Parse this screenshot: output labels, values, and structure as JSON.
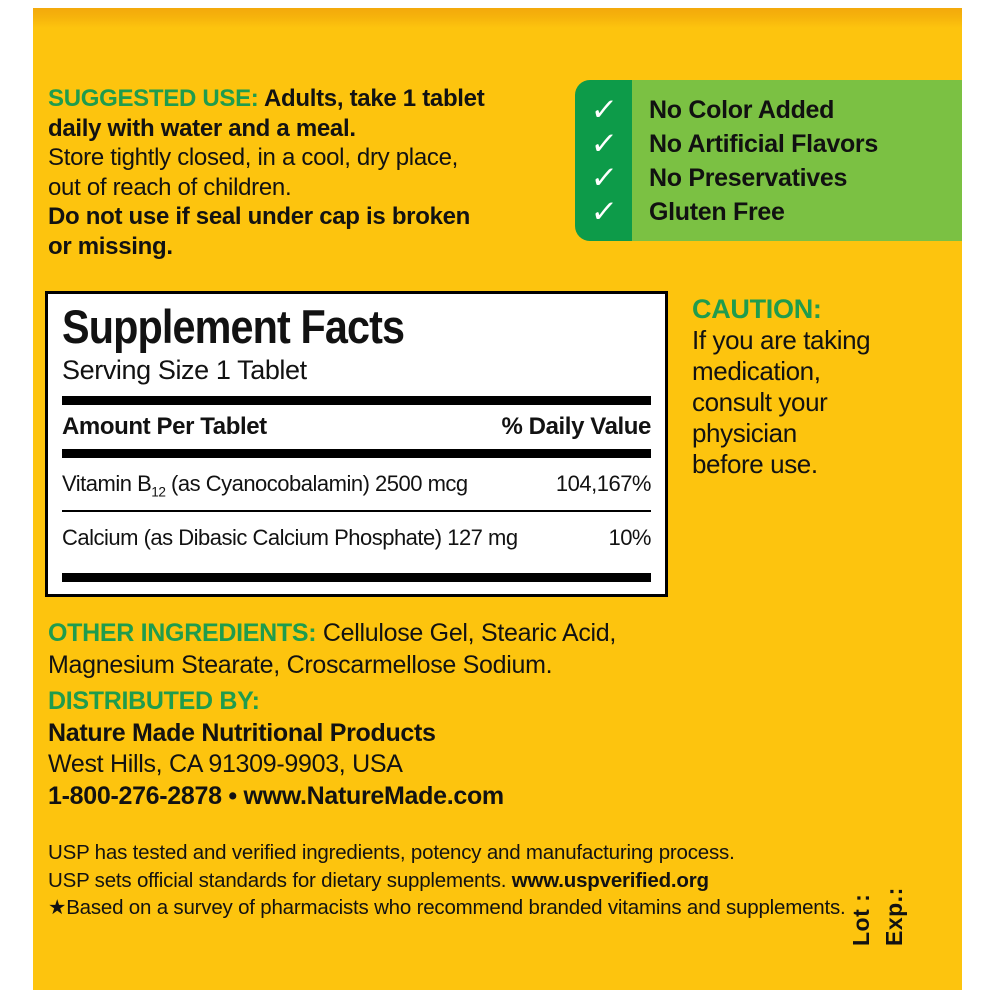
{
  "colors": {
    "label_yellow": "#fdc40e",
    "label_top_shade": "#f3a90c",
    "heading_green": "#1f9c4d",
    "panel_dark_green": "#0d9b49",
    "panel_light_green": "#7bc143",
    "text_black": "#121212",
    "panel_white": "#ffffff"
  },
  "suggested_use": {
    "heading": "SUGGESTED USE:",
    "line1_rest": "Adults, take 1 tablet",
    "line2": "daily with water and a meal.",
    "line3": "Store tightly closed, in a cool, dry place,",
    "line4": "out of reach of children.",
    "line5": "Do not use if seal under cap is broken",
    "line6": "or missing."
  },
  "benefits": {
    "check_icon": "✓",
    "items": [
      "No Color Added",
      "No Artificial Flavors",
      "No Preservatives",
      "Gluten Free"
    ]
  },
  "supplement_facts": {
    "title": "Supplement Facts",
    "serving_size": "Serving Size 1 Tablet",
    "col_amount": "Amount Per Tablet",
    "col_daily_value": "% Daily Value",
    "rows": [
      {
        "name_prefix": "Vitamin B",
        "name_sub": "12",
        "name_suffix": " (as Cyanocobalamin) ",
        "amount": "2500 mcg",
        "daily_value": "104,167%"
      },
      {
        "name_prefix": "Calcium (as Dibasic Calcium Phosphate) ",
        "name_sub": "",
        "name_suffix": "",
        "amount": "127 mg",
        "daily_value": "10%"
      }
    ]
  },
  "caution": {
    "heading": "CAUTION:",
    "lines": [
      "If you are taking",
      "medication,",
      "consult your",
      "physician",
      "before use."
    ]
  },
  "other_ingredients": {
    "heading": "OTHER INGREDIENTS:",
    "line1_rest": "Cellulose Gel, Stearic Acid,",
    "line2": "Magnesium Stearate, Croscarmellose Sodium."
  },
  "distributed_by": {
    "heading": "DISTRIBUTED BY:",
    "company": "Nature Made Nutritional Products",
    "address": "West Hills, CA 91309-9903, USA",
    "contact": "1-800-276-2878 • www.NatureMade.com"
  },
  "usp": {
    "line1": "USP has tested and verified ingredients, potency and manufacturing process.",
    "line2_prefix": "USP sets official standards for dietary supplements. ",
    "line2_bold": "www.uspverified.org",
    "line3_star": "★",
    "line3_rest": "Based on a survey of pharmacists who recommend branded vitamins and supplements."
  },
  "lot_exp": {
    "lot": "Lot :",
    "exp": "Exp.:"
  }
}
